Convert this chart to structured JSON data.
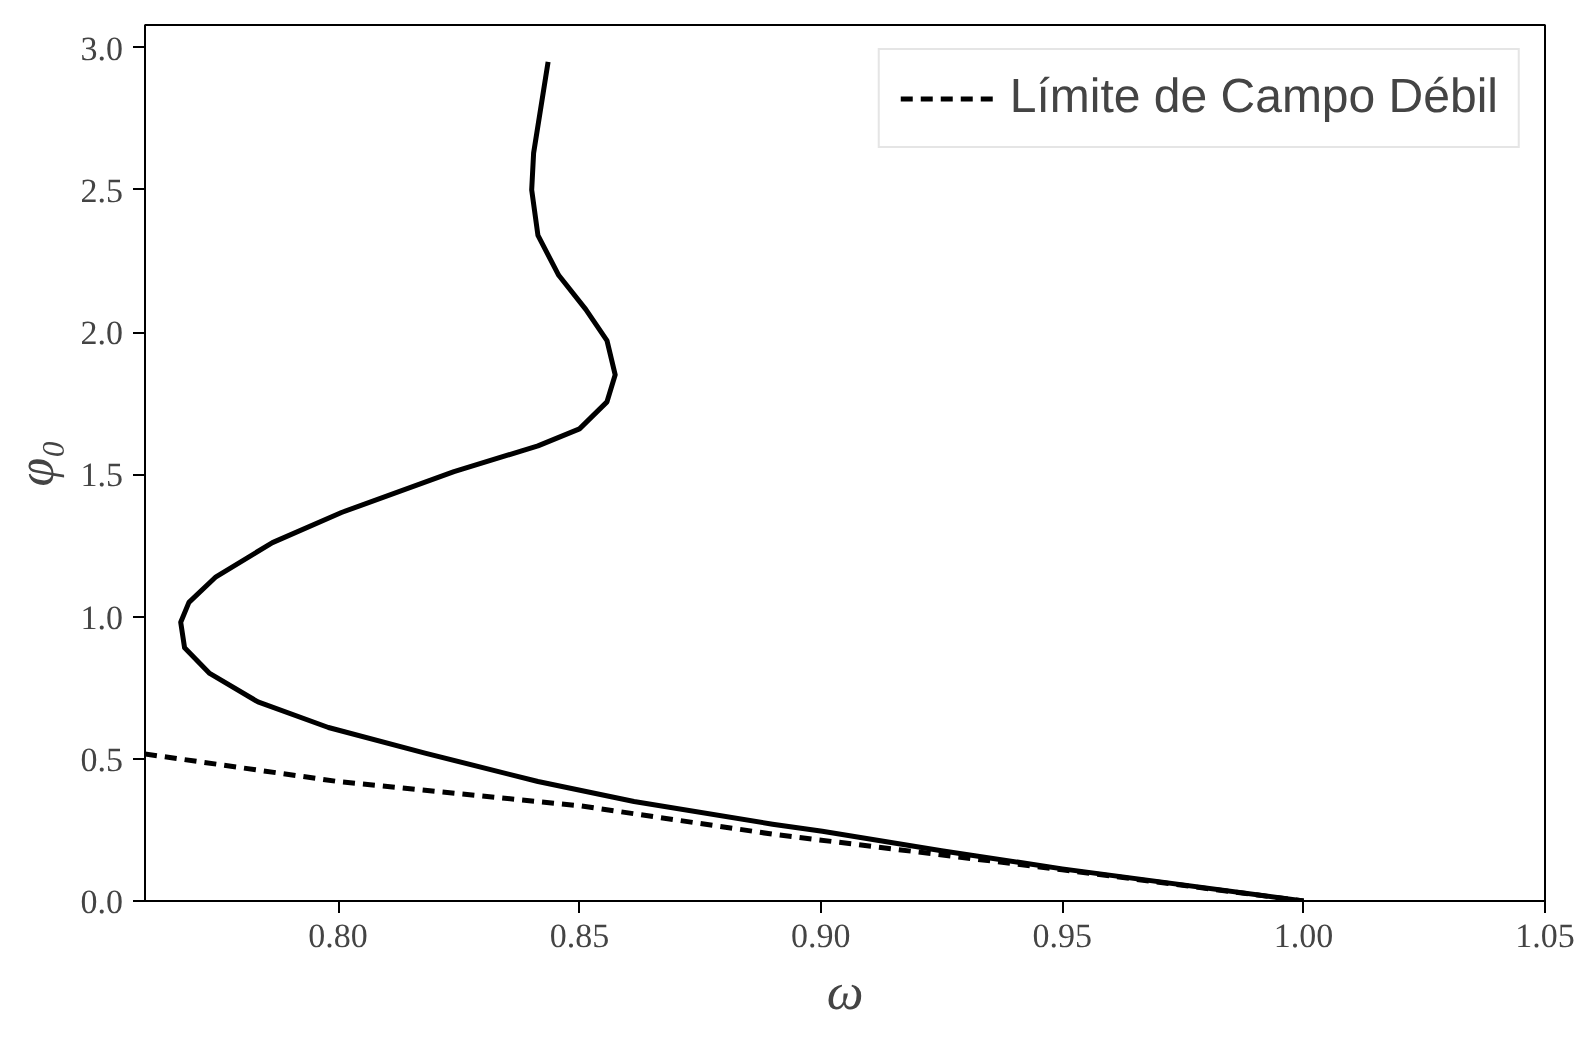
{
  "chart_data": {
    "type": "line",
    "xlabel": "ω",
    "ylabel": "φ₀",
    "xlim": [
      0.76,
      1.05
    ],
    "ylim": [
      0,
      3.08
    ],
    "xticks": [
      {
        "value": 0.8,
        "label": "0.80"
      },
      {
        "value": 0.85,
        "label": "0.85"
      },
      {
        "value": 0.9,
        "label": "0.90"
      },
      {
        "value": 0.95,
        "label": "0.95"
      },
      {
        "value": 1.0,
        "label": "1.00"
      },
      {
        "value": 1.05,
        "label": "1.05"
      }
    ],
    "yticks": [
      {
        "value": 0,
        "label": "0.0"
      },
      {
        "value": 0.5,
        "label": "0.5"
      },
      {
        "value": 1,
        "label": "1.0"
      },
      {
        "value": 1.5,
        "label": "1.5"
      },
      {
        "value": 2,
        "label": "2.0"
      },
      {
        "value": 2.5,
        "label": "2.5"
      },
      {
        "value": 3,
        "label": "3.0"
      }
    ],
    "grid": false,
    "legend": "top right",
    "series": [
      {
        "color": "#000000",
        "line_style": "solid",
        "x": [
          0.8435,
          0.8405,
          0.8401,
          0.8414,
          0.8457,
          0.8513,
          0.8557,
          0.8574,
          0.8557,
          0.85,
          0.8414,
          0.824,
          0.8007,
          0.7864,
          0.7747,
          0.7691,
          0.7674,
          0.7682,
          0.7734,
          0.7834,
          0.798,
          0.818,
          0.8414,
          0.8613,
          0.89,
          0.9003,
          0.925,
          0.95,
          1.0
        ],
        "values": [
          2.95,
          2.63,
          2.5,
          2.34,
          2.2,
          2.08,
          1.97,
          1.85,
          1.755,
          1.66,
          1.6,
          1.51,
          1.366,
          1.26,
          1.14,
          1.05,
          0.98,
          0.89,
          0.8,
          0.7,
          0.61,
          0.52,
          0.42,
          0.35,
          0.27,
          0.245,
          0.177,
          0.113,
          0.0
        ]
      },
      {
        "name": "Límite de Campo Débil",
        "color": "#000000",
        "line_style": "dashed",
        "x": [
          0.76,
          0.8,
          0.85,
          0.89,
          0.95,
          1.0
        ],
        "values": [
          0.517,
          0.42,
          0.335,
          0.235,
          0.11,
          0.0
        ]
      }
    ]
  }
}
